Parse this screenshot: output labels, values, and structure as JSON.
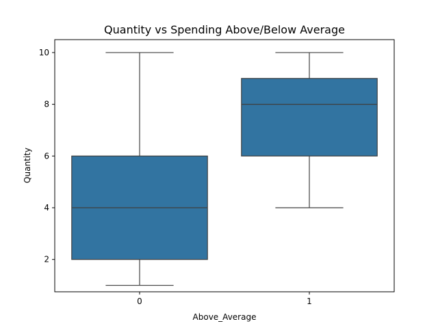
{
  "chart_data": {
    "type": "box",
    "title": "Quantity vs Spending Above/Below Average",
    "xlabel": "Above_Average",
    "ylabel": "Quantity",
    "categories": [
      "0",
      "1"
    ],
    "ylim": [
      0.75,
      10.5
    ],
    "yticks": [
      2,
      4,
      6,
      8,
      10
    ],
    "grid": false,
    "box_color": "#3274a1",
    "line_color": "#3f3f3f",
    "boxes": [
      {
        "category": "0",
        "whisker_low": 1,
        "q1": 2,
        "median": 4,
        "q3": 6,
        "whisker_high": 10
      },
      {
        "category": "1",
        "whisker_low": 4,
        "q1": 6,
        "median": 8,
        "q3": 9,
        "whisker_high": 10
      }
    ]
  }
}
